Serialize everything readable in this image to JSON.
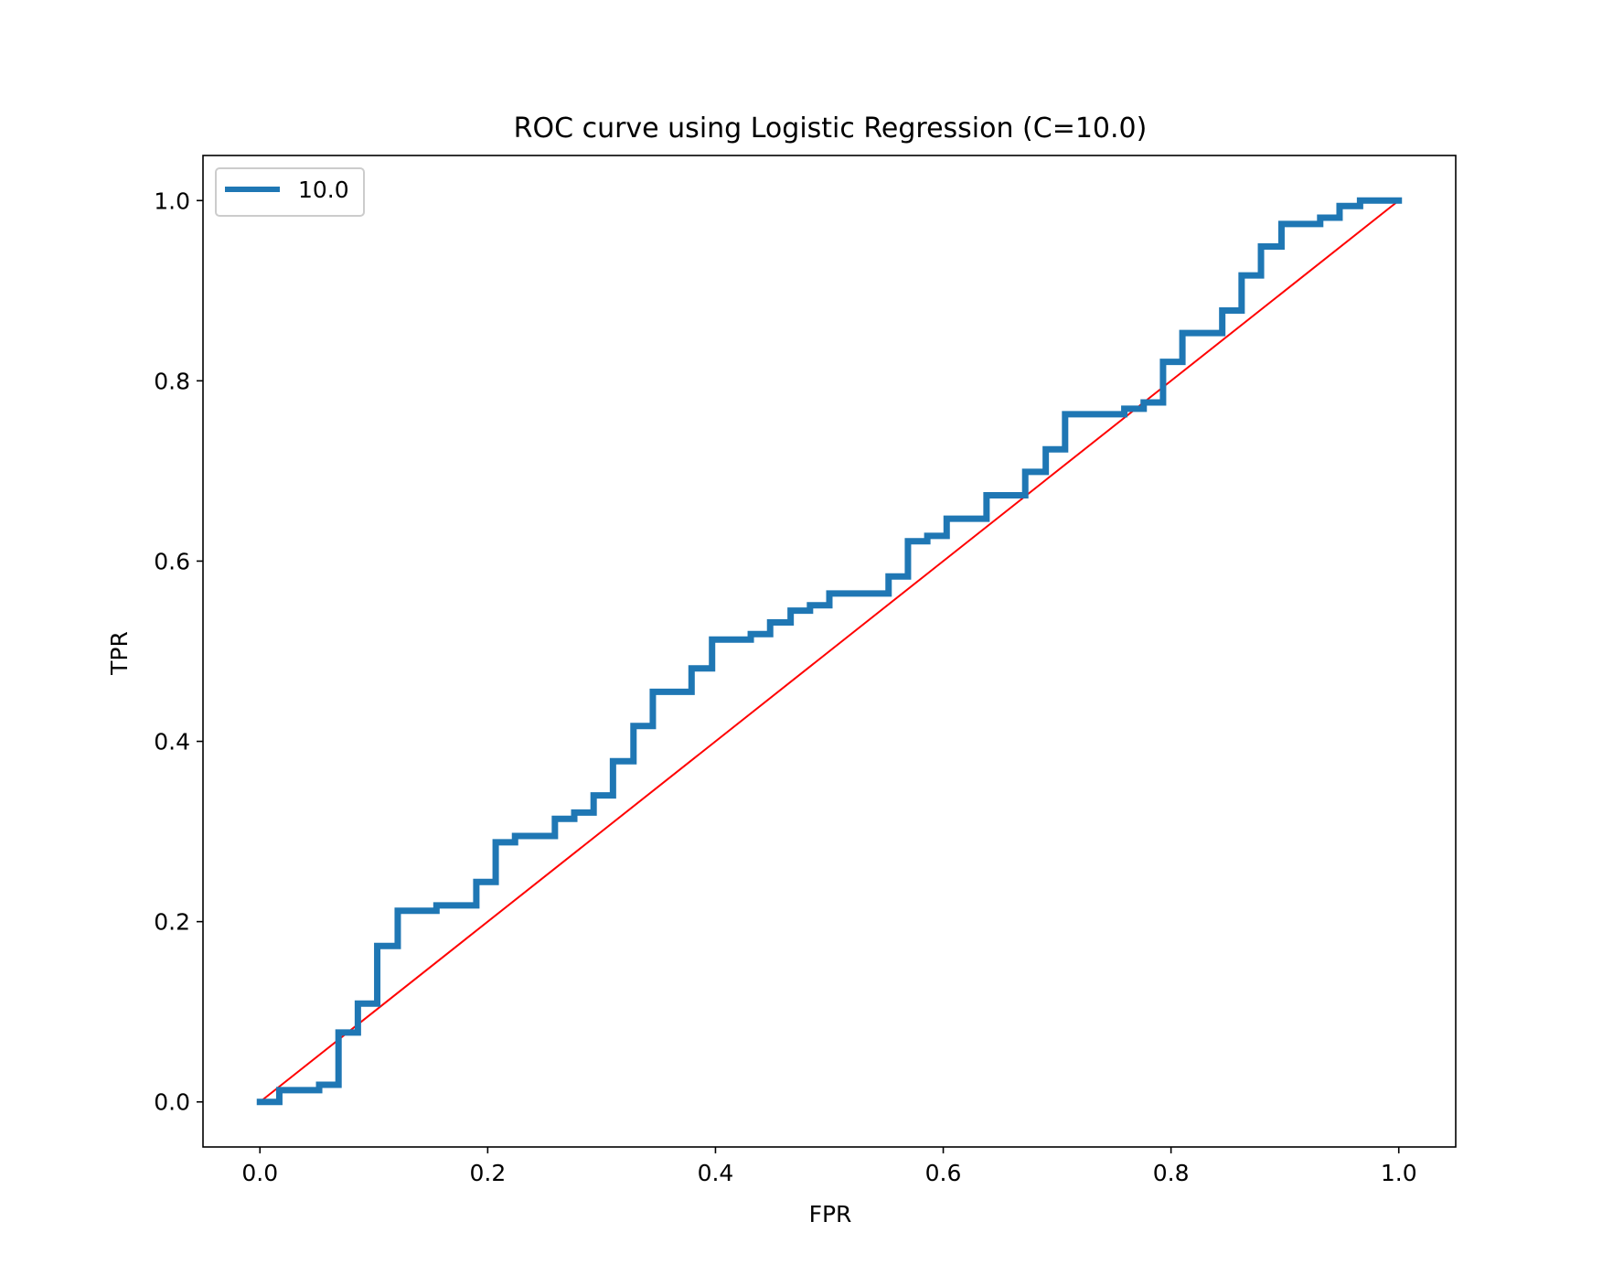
{
  "chart_data": {
    "type": "line",
    "title": "ROC curve using Logistic Regression (C=10.0)",
    "xlabel": "FPR",
    "ylabel": "TPR",
    "xlim": [
      -0.05,
      1.05
    ],
    "ylim": [
      -0.05,
      1.05
    ],
    "xticks": [
      "0.0",
      "0.2",
      "0.4",
      "0.6",
      "0.8",
      "1.0"
    ],
    "yticks": [
      "0.0",
      "0.2",
      "0.4",
      "0.6",
      "0.8",
      "1.0"
    ],
    "grid": false,
    "legend": {
      "location": "upper left",
      "entries": [
        "10.0"
      ]
    },
    "series": [
      {
        "name": "10.0",
        "color": "#1f77b4",
        "drawstyle": "steps",
        "x": [
          0.0,
          0.017,
          0.017,
          0.052,
          0.052,
          0.069,
          0.069,
          0.086,
          0.086,
          0.103,
          0.103,
          0.121,
          0.121,
          0.155,
          0.155,
          0.19,
          0.19,
          0.207,
          0.207,
          0.224,
          0.224,
          0.259,
          0.259,
          0.276,
          0.276,
          0.293,
          0.293,
          0.31,
          0.31,
          0.328,
          0.328,
          0.345,
          0.345,
          0.379,
          0.379,
          0.397,
          0.397,
          0.431,
          0.431,
          0.448,
          0.448,
          0.466,
          0.466,
          0.483,
          0.483,
          0.5,
          0.5,
          0.552,
          0.552,
          0.569,
          0.569,
          0.586,
          0.586,
          0.603,
          0.603,
          0.638,
          0.638,
          0.672,
          0.672,
          0.69,
          0.69,
          0.707,
          0.707,
          0.759,
          0.759,
          0.776,
          0.776,
          0.793,
          0.793,
          0.81,
          0.81,
          0.845,
          0.845,
          0.862,
          0.862,
          0.879,
          0.879,
          0.897,
          0.897,
          0.931,
          0.931,
          0.948,
          0.948,
          0.966,
          0.966,
          1.0,
          1.0
        ],
        "y": [
          0.0,
          0.0,
          0.013,
          0.013,
          0.019,
          0.019,
          0.077,
          0.077,
          0.109,
          0.109,
          0.173,
          0.173,
          0.212,
          0.212,
          0.218,
          0.218,
          0.244,
          0.244,
          0.288,
          0.288,
          0.295,
          0.295,
          0.314,
          0.314,
          0.321,
          0.321,
          0.34,
          0.34,
          0.378,
          0.378,
          0.417,
          0.417,
          0.455,
          0.455,
          0.481,
          0.481,
          0.513,
          0.513,
          0.519,
          0.519,
          0.532,
          0.532,
          0.545,
          0.545,
          0.551,
          0.551,
          0.564,
          0.564,
          0.583,
          0.583,
          0.622,
          0.622,
          0.628,
          0.628,
          0.647,
          0.647,
          0.673,
          0.673,
          0.699,
          0.699,
          0.724,
          0.724,
          0.763,
          0.763,
          0.769,
          0.769,
          0.776,
          0.776,
          0.821,
          0.821,
          0.853,
          0.853,
          0.878,
          0.878,
          0.917,
          0.917,
          0.949,
          0.949,
          0.974,
          0.974,
          0.981,
          0.981,
          0.994,
          0.994,
          1.0,
          1.0,
          1.0
        ]
      },
      {
        "name": "",
        "color": "#ff0000",
        "x": [
          0.0,
          1.0
        ],
        "y": [
          0.0,
          1.0
        ]
      }
    ]
  }
}
